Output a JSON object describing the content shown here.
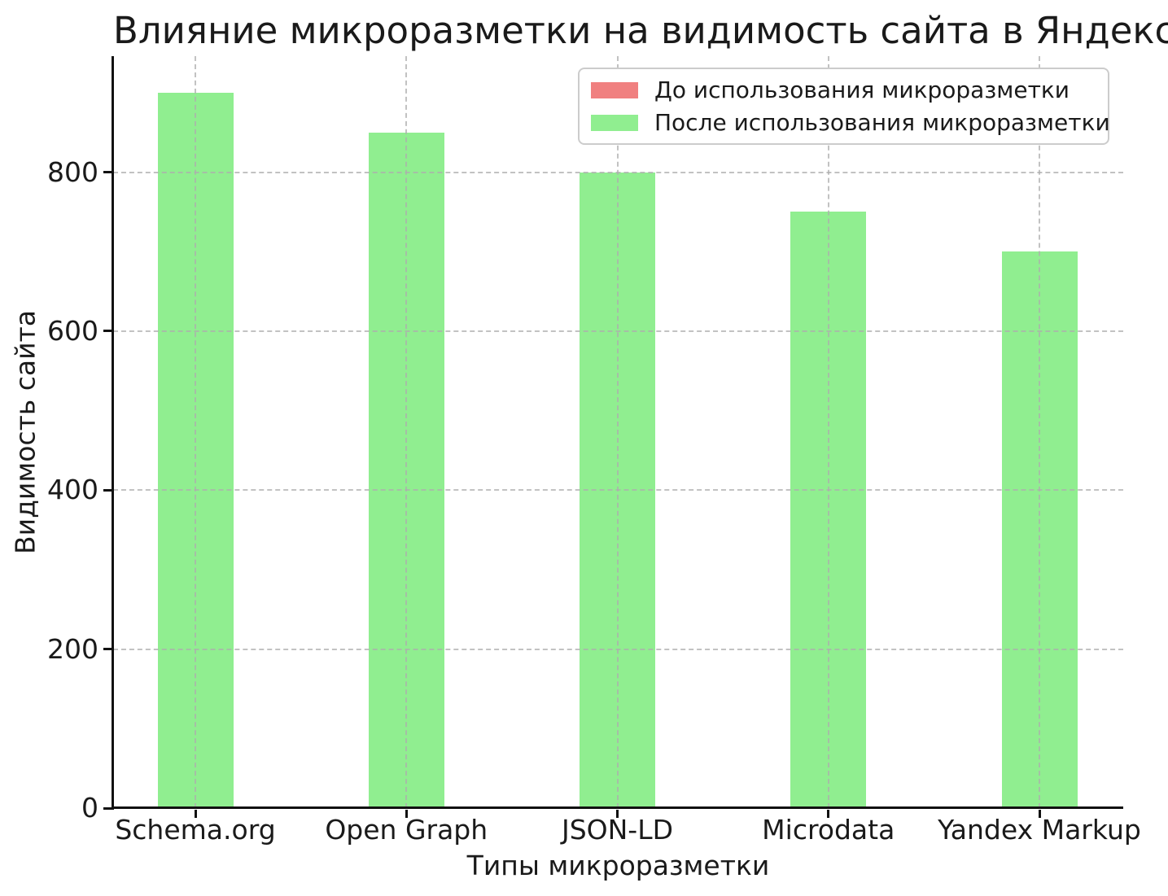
{
  "chart_data": {
    "type": "bar",
    "title": "Влияние микроразметки на видимость сайта в Яндексе",
    "xlabel": "Типы микроразметки",
    "ylabel": "Видимость сайта",
    "categories": [
      "Schema.org",
      "Open Graph",
      "JSON-LD",
      "Microdata",
      "Yandex Markup"
    ],
    "series": [
      {
        "name": "До использования микроразметки",
        "color": "#F08080",
        "bars_visible": false,
        "values": []
      },
      {
        "name": "После использования микроразметки",
        "color": "#90EE90",
        "bars_visible": true,
        "values": [
          900,
          850,
          800,
          750,
          700
        ]
      }
    ],
    "yticks": [
      0,
      200,
      400,
      600,
      800
    ],
    "ylim": [
      0,
      946
    ],
    "grid": "dashed, both axes, drawn over bars",
    "legend_position": "upper right",
    "colors": {
      "background": "#ffffff",
      "grid": "#c9c9c9",
      "axis": "#111111",
      "text": "#1a1a1a",
      "legend_border": "#cccccc"
    }
  }
}
